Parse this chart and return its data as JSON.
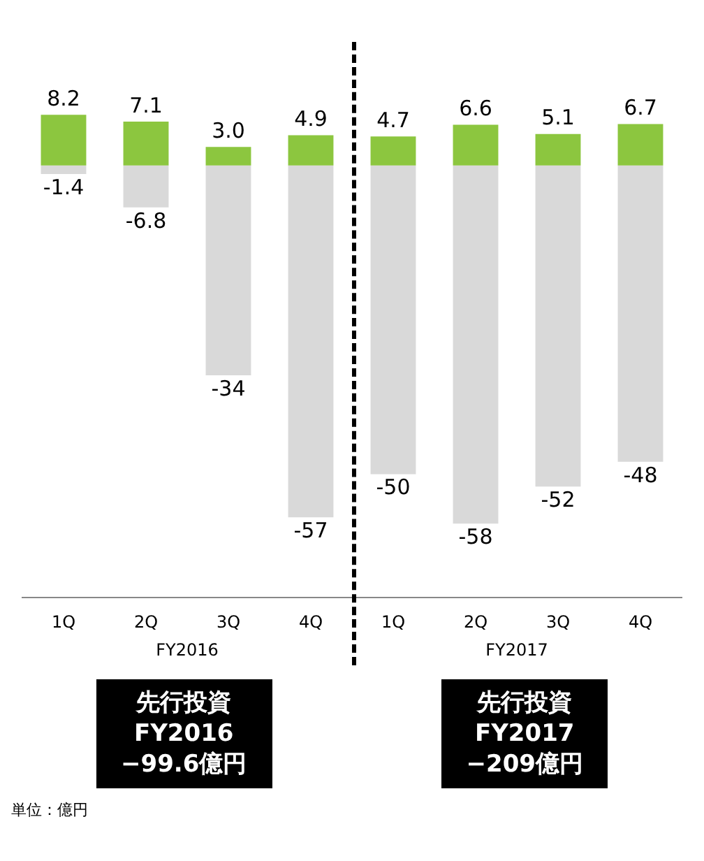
{
  "chart_data": {
    "type": "bar",
    "categories": [
      "1Q",
      "2Q",
      "3Q",
      "4Q",
      "1Q",
      "2Q",
      "3Q",
      "4Q"
    ],
    "stacked": true,
    "series": [
      {
        "color": "#8cc63f",
        "values": [
          8.2,
          7.1,
          3.0,
          4.9,
          4.7,
          6.6,
          5.1,
          6.7
        ],
        "value_labels": [
          "8.2",
          "7.1",
          "3.0",
          "4.9",
          "4.7",
          "6.6",
          "5.1",
          "6.7"
        ]
      },
      {
        "color": "#d9d9d9",
        "values": [
          -1.4,
          -6.8,
          -34,
          -57,
          -50,
          -58,
          -52,
          -48
        ],
        "value_labels": [
          "-1.4",
          "-6.8",
          "-34",
          "-57",
          "-50",
          "-58",
          "-52",
          "-48"
        ]
      }
    ],
    "grid": false,
    "legend": false,
    "tick_labels": "x",
    "annotations": [
      "FY2016",
      "FY2017",
      "先行投資\nFY2016\n−99.6億円",
      "先行投資\nFY2017\n−209億円",
      "単位：億円"
    ]
  }
}
